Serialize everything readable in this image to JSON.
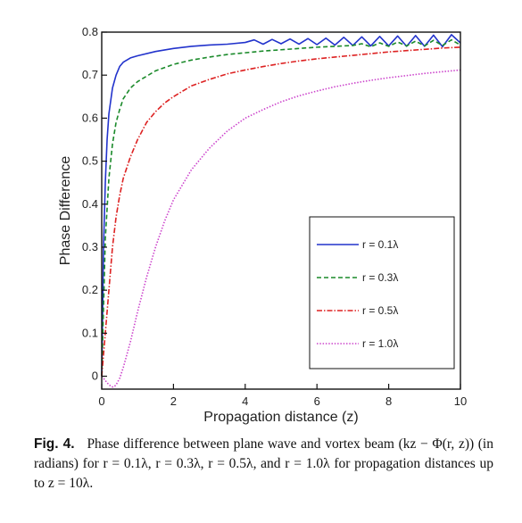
{
  "chart_data": {
    "type": "line",
    "xlabel": "Propagation distance (z)",
    "ylabel": "Phase Difference",
    "xlim": [
      0,
      10
    ],
    "ylim": [
      -0.03,
      0.8
    ],
    "x_ticks": [
      "0",
      "2",
      "4",
      "6",
      "8",
      "10"
    ],
    "y_ticks": [
      "0",
      "0.1",
      "0.2",
      "0.3",
      "0.4",
      "0.5",
      "0.6",
      "0.7",
      "0.8"
    ],
    "grid": false,
    "legend_position": "bottom-right",
    "series": [
      {
        "name": "r = 0.1λ",
        "color": "#2233cc",
        "style": "solid",
        "x": [
          0,
          0.05,
          0.1,
          0.15,
          0.2,
          0.3,
          0.4,
          0.5,
          0.6,
          0.8,
          1.0,
          1.5,
          2.0,
          2.5,
          3.0,
          3.5,
          4.0,
          4.25,
          4.5,
          4.75,
          5.0,
          5.25,
          5.5,
          5.75,
          6.0,
          6.25,
          6.5,
          6.75,
          7.0,
          7.25,
          7.5,
          7.75,
          8.0,
          8.25,
          8.5,
          8.75,
          9.0,
          9.25,
          9.5,
          9.75,
          10.0
        ],
        "values": [
          0.0,
          0.3,
          0.45,
          0.55,
          0.61,
          0.67,
          0.7,
          0.72,
          0.73,
          0.74,
          0.745,
          0.755,
          0.762,
          0.767,
          0.77,
          0.772,
          0.776,
          0.782,
          0.772,
          0.783,
          0.773,
          0.784,
          0.772,
          0.785,
          0.771,
          0.786,
          0.77,
          0.788,
          0.769,
          0.789,
          0.768,
          0.79,
          0.768,
          0.791,
          0.767,
          0.792,
          0.767,
          0.793,
          0.766,
          0.794,
          0.775
        ]
      },
      {
        "name": "r = 0.3λ",
        "color": "#1a8a2a",
        "style": "dashed",
        "x": [
          0,
          0.1,
          0.2,
          0.3,
          0.4,
          0.5,
          0.6,
          0.8,
          1.0,
          1.5,
          2.0,
          2.5,
          3.0,
          3.5,
          4.0,
          4.5,
          5.0,
          5.5,
          6.0,
          6.5,
          7.0,
          7.25,
          7.5,
          7.75,
          8.0,
          8.25,
          8.5,
          8.75,
          9.0,
          9.25,
          9.5,
          9.75,
          10.0
        ],
        "values": [
          0.0,
          0.32,
          0.46,
          0.54,
          0.59,
          0.62,
          0.645,
          0.67,
          0.685,
          0.71,
          0.725,
          0.735,
          0.742,
          0.748,
          0.752,
          0.756,
          0.759,
          0.762,
          0.765,
          0.767,
          0.769,
          0.773,
          0.766,
          0.775,
          0.767,
          0.777,
          0.768,
          0.779,
          0.768,
          0.781,
          0.769,
          0.782,
          0.77
        ]
      },
      {
        "name": "r = 0.5λ",
        "color": "#dd2222",
        "style": "dashdot",
        "x": [
          0,
          0.1,
          0.2,
          0.3,
          0.4,
          0.5,
          0.6,
          0.8,
          1.0,
          1.25,
          1.5,
          1.75,
          2.0,
          2.5,
          3.0,
          3.5,
          4.0,
          4.5,
          5.0,
          5.5,
          6.0,
          6.5,
          7.0,
          7.5,
          8.0,
          8.5,
          9.0,
          9.5,
          10.0
        ],
        "values": [
          0.0,
          0.1,
          0.2,
          0.3,
          0.37,
          0.42,
          0.46,
          0.51,
          0.55,
          0.59,
          0.615,
          0.635,
          0.65,
          0.675,
          0.69,
          0.703,
          0.712,
          0.72,
          0.727,
          0.733,
          0.738,
          0.742,
          0.746,
          0.75,
          0.754,
          0.757,
          0.76,
          0.763,
          0.765
        ]
      },
      {
        "name": "r = 1.0λ",
        "color": "#cc44cc",
        "style": "dotted",
        "x": [
          0,
          0.1,
          0.2,
          0.3,
          0.35,
          0.4,
          0.5,
          0.6,
          0.8,
          1.0,
          1.25,
          1.5,
          1.75,
          2.0,
          2.5,
          3.0,
          3.5,
          4.0,
          4.5,
          5.0,
          5.5,
          6.0,
          6.5,
          7.0,
          7.5,
          8.0,
          8.5,
          9.0,
          9.5,
          10.0
        ],
        "values": [
          0.0,
          -0.01,
          -0.02,
          -0.025,
          -0.024,
          -0.02,
          -0.005,
          0.02,
          0.08,
          0.15,
          0.23,
          0.3,
          0.36,
          0.41,
          0.48,
          0.53,
          0.57,
          0.6,
          0.62,
          0.638,
          0.652,
          0.663,
          0.673,
          0.681,
          0.688,
          0.694,
          0.699,
          0.704,
          0.708,
          0.712
        ]
      }
    ]
  },
  "caption": {
    "label": "Fig. 4.",
    "text": "Phase difference between plane wave and vortex beam (kz − Φ(r, z)) (in radians) for r = 0.1λ, r = 0.3λ, r = 0.5λ, and r = 1.0λ for propagation distances up to z = 10λ."
  }
}
